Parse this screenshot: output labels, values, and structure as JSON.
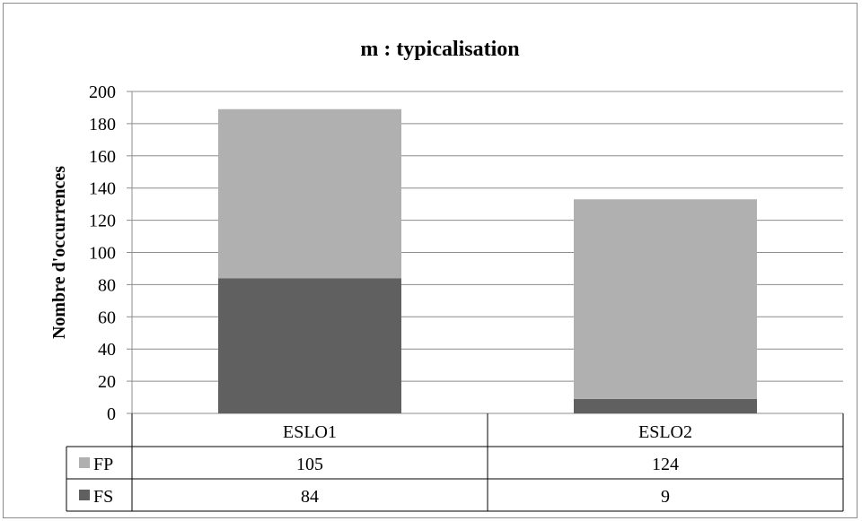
{
  "chart_data": {
    "type": "bar",
    "stacked": true,
    "title": "m : typicalisation",
    "ylabel": "Nombre d'occurrences",
    "xlabel": "",
    "categories": [
      "ESLO1",
      "ESLO2"
    ],
    "series": [
      {
        "name": "FS",
        "values": [
          84,
          9
        ],
        "color": "#606060"
      },
      {
        "name": "FP",
        "values": [
          105,
          124
        ],
        "color": "#b0b0b0"
      }
    ],
    "ylim": [
      0,
      200
    ],
    "yticks": [
      0,
      20,
      40,
      60,
      80,
      100,
      120,
      140,
      160,
      180,
      200
    ],
    "grid": true,
    "legend": "data-table",
    "data_table": {
      "rows": [
        {
          "series": "FP",
          "cells": [
            "105",
            "124"
          ]
        },
        {
          "series": "FS",
          "cells": [
            "84",
            "9"
          ]
        }
      ]
    }
  }
}
